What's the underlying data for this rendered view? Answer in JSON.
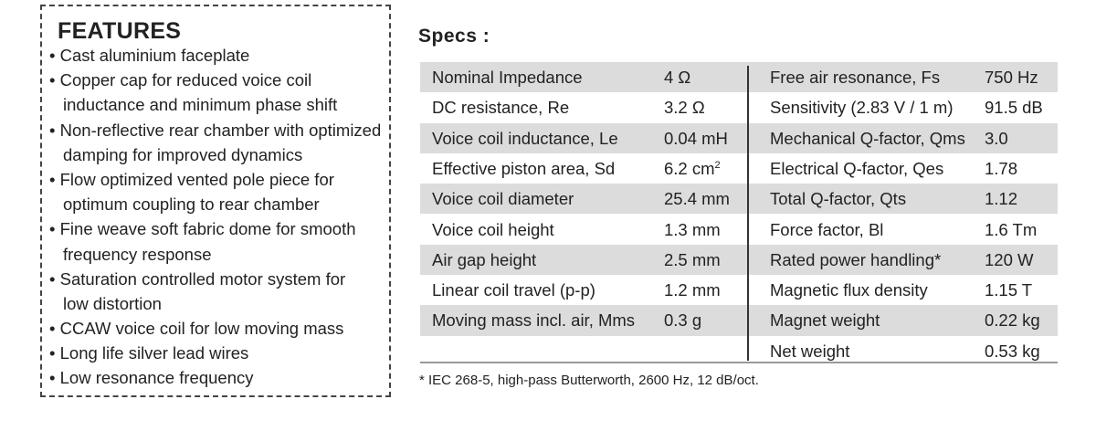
{
  "features": {
    "title": "FEATURES",
    "items": [
      [
        "Cast aluminium faceplate"
      ],
      [
        "Copper cap for reduced voice coil",
        "inductance and minimum phase shift"
      ],
      [
        "Non-reflective rear chamber with optimized",
        "damping for improved dynamics"
      ],
      [
        "Flow optimized vented pole piece for",
        "optimum coupling to rear chamber"
      ],
      [
        "Fine weave soft fabric dome for smooth",
        "frequency response"
      ],
      [
        "Saturation controlled motor system for",
        "low distortion"
      ],
      [
        "CCAW voice coil for low moving mass"
      ],
      [
        "Long life silver lead wires"
      ],
      [
        "Low resonance frequency"
      ]
    ]
  },
  "specs": {
    "title": "Specs :",
    "left": [
      {
        "label": "Nominal Impedance",
        "value": "4 Ω"
      },
      {
        "label": "DC resistance, Re",
        "value": "3.2 Ω"
      },
      {
        "label": "Voice coil inductance, Le",
        "value": "0.04 mH"
      },
      {
        "label": "Effective piston area, Sd",
        "value": "6.2 cm",
        "sup": "2"
      },
      {
        "label": "Voice coil diameter",
        "value": "25.4 mm"
      },
      {
        "label": "Voice coil height",
        "value": "1.3 mm"
      },
      {
        "label": "Air gap height",
        "value": "2.5 mm"
      },
      {
        "label": "Linear coil travel (p-p)",
        "value": "1.2  mm"
      },
      {
        "label": "Moving mass incl. air, Mms",
        "value": "0.3 g"
      }
    ],
    "right": [
      {
        "label": "Free air resonance, Fs",
        "value": "750 Hz"
      },
      {
        "label": "Sensitivity (2.83 V / 1 m)",
        "value": "91.5 dB"
      },
      {
        "label": "Mechanical Q-factor, Qms",
        "value": "3.0"
      },
      {
        "label": "Electrical Q-factor, Qes",
        "value": "1.78"
      },
      {
        "label": "Total Q-factor, Qts",
        "value": "1.12"
      },
      {
        "label": "Force factor, Bl",
        "value": "1.6 Tm"
      },
      {
        "label": "Rated power handling*",
        "value": "120 W"
      },
      {
        "label": "Magnetic flux density",
        "value": "1.15 T"
      },
      {
        "label": "Magnet weight",
        "value": "0.22 kg"
      },
      {
        "label": "Net weight",
        "value": "0.53 kg"
      }
    ],
    "footnote": "* IEC 268-5, high-pass Butterworth, 2600 Hz, 12 dB/oct."
  }
}
